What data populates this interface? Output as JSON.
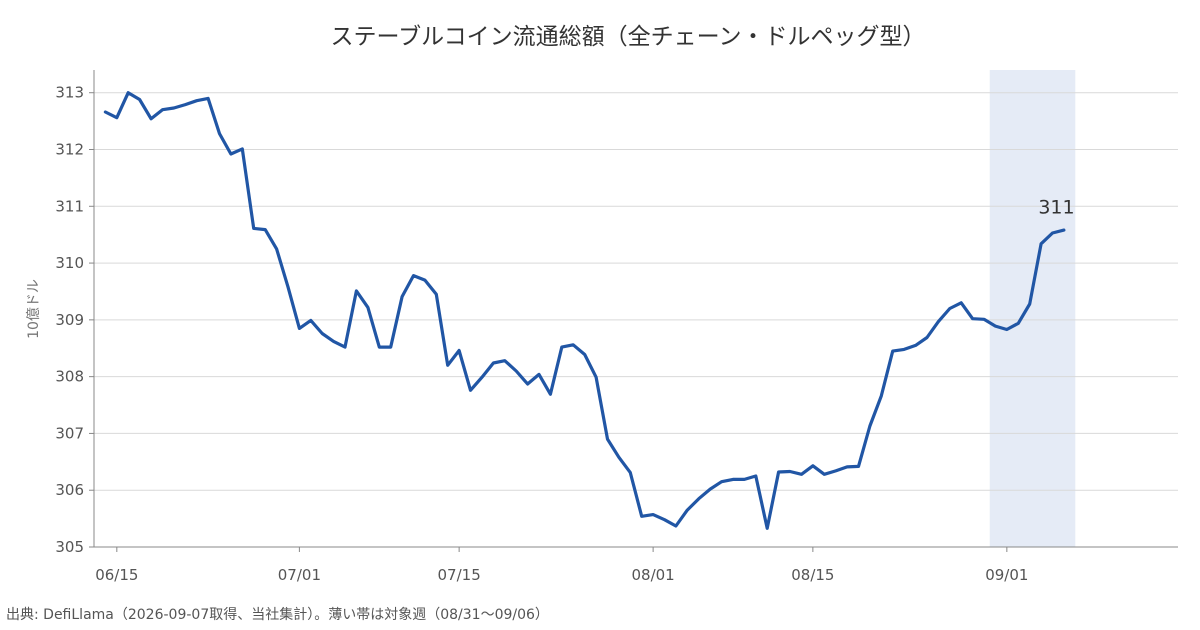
{
  "chart_data": {
    "type": "line",
    "title": "ステーブルコイン流通総額（全チェーン・ドルペッグ型）",
    "ylabel": "10億ドル",
    "xlabel": "",
    "ylim": [
      305,
      313.4
    ],
    "yticks": [
      305,
      306,
      307,
      308,
      309,
      310,
      311,
      312,
      313
    ],
    "xlim": [
      "2026-06-13",
      "2026-09-16"
    ],
    "xticks": [
      {
        "date": "2026-06-15",
        "label": "06/15"
      },
      {
        "date": "2026-07-01",
        "label": "07/01"
      },
      {
        "date": "2026-07-15",
        "label": "07/15"
      },
      {
        "date": "2026-08-01",
        "label": "08/01"
      },
      {
        "date": "2026-08-15",
        "label": "08/15"
      },
      {
        "date": "2026-09-01",
        "label": "09/01"
      }
    ],
    "grid": "horizontal",
    "highlight_band": {
      "start": "2026-08-31",
      "end": "2026-09-06",
      "color": "#e5ebf6"
    },
    "line_color": "#2156a5",
    "series": [
      {
        "name": "",
        "points": [
          [
            "2026-06-14",
            312.66
          ],
          [
            "2026-06-15",
            312.56
          ],
          [
            "2026-06-16",
            313.0
          ],
          [
            "2026-06-17",
            312.88
          ],
          [
            "2026-06-18",
            312.54
          ],
          [
            "2026-06-19",
            312.7
          ],
          [
            "2026-06-20",
            312.73
          ],
          [
            "2026-06-21",
            312.79
          ],
          [
            "2026-06-22",
            312.86
          ],
          [
            "2026-06-23",
            312.9
          ],
          [
            "2026-06-24",
            312.28
          ],
          [
            "2026-06-25",
            311.92
          ],
          [
            "2026-06-26",
            312.01
          ],
          [
            "2026-06-27",
            310.61
          ],
          [
            "2026-06-28",
            310.59
          ],
          [
            "2026-06-29",
            310.25
          ],
          [
            "2026-06-30",
            309.58
          ],
          [
            "2026-07-01",
            308.85
          ],
          [
            "2026-07-02",
            308.99
          ],
          [
            "2026-07-03",
            308.76
          ],
          [
            "2026-07-04",
            308.62
          ],
          [
            "2026-07-05",
            308.52
          ],
          [
            "2026-07-06",
            309.51
          ],
          [
            "2026-07-07",
            309.22
          ],
          [
            "2026-07-08",
            308.52
          ],
          [
            "2026-07-09",
            308.52
          ],
          [
            "2026-07-10",
            309.41
          ],
          [
            "2026-07-11",
            309.78
          ],
          [
            "2026-07-12",
            309.7
          ],
          [
            "2026-07-13",
            309.45
          ],
          [
            "2026-07-14",
            308.2
          ],
          [
            "2026-07-15",
            308.46
          ],
          [
            "2026-07-16",
            307.76
          ],
          [
            "2026-07-17",
            307.99
          ],
          [
            "2026-07-18",
            308.24
          ],
          [
            "2026-07-19",
            308.28
          ],
          [
            "2026-07-20",
            308.1
          ],
          [
            "2026-07-21",
            307.87
          ],
          [
            "2026-07-22",
            308.04
          ],
          [
            "2026-07-23",
            307.69
          ],
          [
            "2026-07-24",
            308.52
          ],
          [
            "2026-07-25",
            308.56
          ],
          [
            "2026-07-26",
            308.39
          ],
          [
            "2026-07-27",
            307.99
          ],
          [
            "2026-07-28",
            306.9
          ],
          [
            "2026-07-29",
            306.58
          ],
          [
            "2026-07-30",
            306.31
          ],
          [
            "2026-07-31",
            305.54
          ],
          [
            "2026-08-01",
            305.57
          ],
          [
            "2026-08-02",
            305.48
          ],
          [
            "2026-08-03",
            305.37
          ],
          [
            "2026-08-04",
            305.65
          ],
          [
            "2026-08-05",
            305.85
          ],
          [
            "2026-08-06",
            306.02
          ],
          [
            "2026-08-07",
            306.15
          ],
          [
            "2026-08-08",
            306.19
          ],
          [
            "2026-08-09",
            306.19
          ],
          [
            "2026-08-10",
            306.25
          ],
          [
            "2026-08-11",
            305.33
          ],
          [
            "2026-08-12",
            306.32
          ],
          [
            "2026-08-13",
            306.33
          ],
          [
            "2026-08-14",
            306.28
          ],
          [
            "2026-08-15",
            306.43
          ],
          [
            "2026-08-16",
            306.28
          ],
          [
            "2026-08-17",
            306.34
          ],
          [
            "2026-08-18",
            306.41
          ],
          [
            "2026-08-19",
            306.42
          ],
          [
            "2026-08-20",
            307.13
          ],
          [
            "2026-08-21",
            307.66
          ],
          [
            "2026-08-22",
            308.45
          ],
          [
            "2026-08-23",
            308.48
          ],
          [
            "2026-08-24",
            308.55
          ],
          [
            "2026-08-25",
            308.69
          ],
          [
            "2026-08-26",
            308.97
          ],
          [
            "2026-08-27",
            309.2
          ],
          [
            "2026-08-28",
            309.3
          ],
          [
            "2026-08-29",
            309.02
          ],
          [
            "2026-08-30",
            309.01
          ],
          [
            "2026-08-31",
            308.89
          ],
          [
            "2026-09-01",
            308.83
          ],
          [
            "2026-09-02",
            308.94
          ],
          [
            "2026-09-03",
            309.28
          ],
          [
            "2026-09-04",
            310.34
          ],
          [
            "2026-09-05",
            310.53
          ],
          [
            "2026-09-06",
            310.58
          ]
        ]
      }
    ],
    "end_label": {
      "date": "2026-09-05",
      "value": 311,
      "text": "311"
    },
    "source": "出典: DefiLlama（2026-09-07取得、当社集計）。薄い帯は対象週（08/31〜09/06）"
  }
}
